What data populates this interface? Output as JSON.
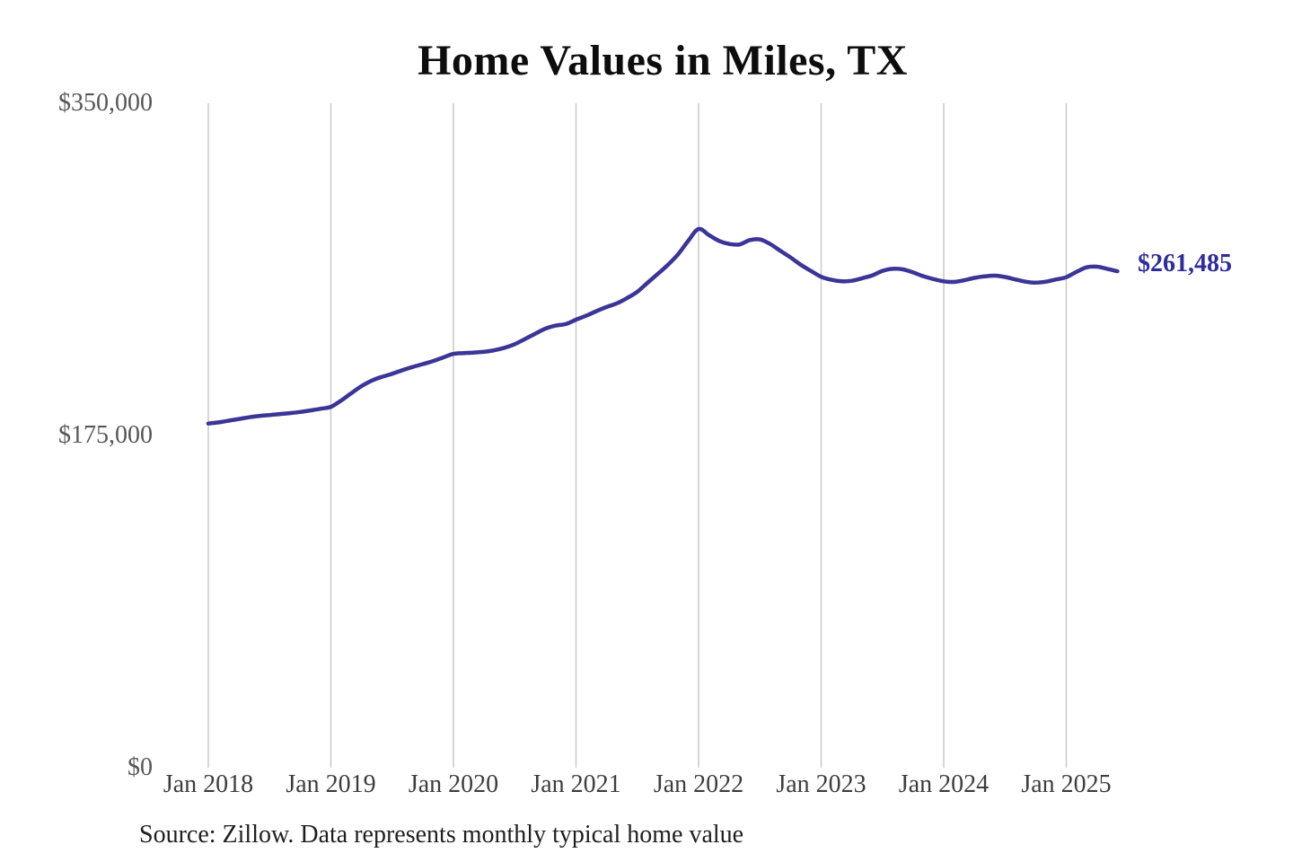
{
  "chart_data": {
    "type": "line",
    "title": "Home Values in Miles, TX",
    "source_note": "Source: Zillow. Data represents monthly typical home value",
    "xlabel": "",
    "ylabel": "",
    "ylim": [
      0,
      350000
    ],
    "grid": "vertical-only",
    "legend": "none",
    "x_start": "2018-01",
    "x_end": "2025-06",
    "x_frequency": "monthly",
    "y_ticks": [
      {
        "value": 350000,
        "label": "$350,000"
      },
      {
        "value": 175000,
        "label": "$175,000"
      },
      {
        "value": 0,
        "label": "$0"
      }
    ],
    "x_ticks": [
      {
        "month_index": 0,
        "label": "Jan 2018"
      },
      {
        "month_index": 12,
        "label": "Jan 2019"
      },
      {
        "month_index": 24,
        "label": "Jan 2020"
      },
      {
        "month_index": 36,
        "label": "Jan 2021"
      },
      {
        "month_index": 48,
        "label": "Jan 2022"
      },
      {
        "month_index": 60,
        "label": "Jan 2023"
      },
      {
        "month_index": 72,
        "label": "Jan 2024"
      },
      {
        "month_index": 84,
        "label": "Jan 2025"
      }
    ],
    "annotation": {
      "text": "$261,485",
      "attached_to": "last-point"
    },
    "series": [
      {
        "name": "Monthly typical home value",
        "values": [
          181300,
          181900,
          182800,
          183700,
          184600,
          185300,
          185800,
          186300,
          186800,
          187400,
          188200,
          189100,
          190100,
          193400,
          197300,
          201000,
          203900,
          205900,
          207500,
          209400,
          211100,
          212600,
          214200,
          216100,
          218000,
          218400,
          218700,
          219100,
          219900,
          221200,
          223100,
          225800,
          228600,
          231300,
          232900,
          233700,
          236000,
          238100,
          240500,
          242700,
          244600,
          247400,
          250700,
          255400,
          260100,
          264900,
          270500,
          277600,
          283800,
          280600,
          277500,
          275900,
          275600,
          277900,
          278300,
          275900,
          272300,
          268800,
          264900,
          261700,
          258600,
          257000,
          256200,
          256500,
          257800,
          259300,
          261700,
          262800,
          262500,
          260900,
          258900,
          257400,
          256200,
          255900,
          256800,
          258000,
          258800,
          259200,
          258500,
          257200,
          256000,
          255500,
          256000,
          257200,
          258400,
          261200,
          263600,
          263900,
          262800,
          261485
        ]
      }
    ],
    "colors": {
      "line": "#3a3597",
      "annotation": "#2e2c9e",
      "gridline": "#c9c9c9",
      "y_tick_text": "#575757",
      "x_tick_text": "#3d3d3d",
      "title_text": "#0d0d0d",
      "source_text": "#1f1f1f",
      "background": "#ffffff"
    }
  }
}
